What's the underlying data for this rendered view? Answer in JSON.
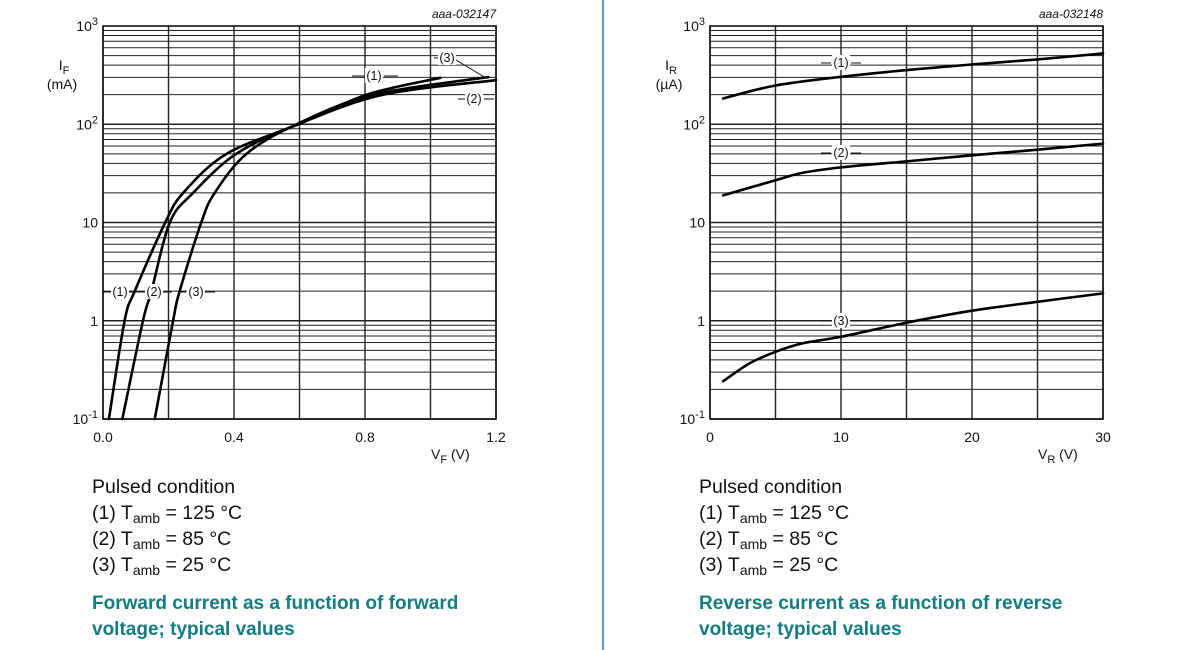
{
  "charts_text": [
    {
      "notes_title": "Pulsed condition",
      "legend": [
        {
          "prefix": "(1) T",
          "sub": "amb",
          "suffix": " = 125 °C"
        },
        {
          "prefix": "(2) T",
          "sub": "amb",
          "suffix": " = 85 °C"
        },
        {
          "prefix": "(3) T",
          "sub": "amb",
          "suffix": " = 25 °C"
        }
      ],
      "caption_line1": "Forward current as a function of forward",
      "caption_line2": "voltage; typical values"
    },
    {
      "notes_title": "Pulsed condition",
      "legend": [
        {
          "prefix": "(1) T",
          "sub": "amb",
          "suffix": " = 125 °C"
        },
        {
          "prefix": "(2) T",
          "sub": "amb",
          "suffix": " = 85 °C"
        },
        {
          "prefix": "(3) T",
          "sub": "amb",
          "suffix": " = 25 °C"
        }
      ],
      "caption_line1": "Reverse current as a function of reverse",
      "caption_line2": "voltage; typical values"
    }
  ],
  "colors": {
    "caption": "#137b82",
    "divider": "#5a9ea6",
    "curve": "#000000",
    "grid": "#222222"
  },
  "chart_data": [
    {
      "type": "line",
      "id_code": "aaa-032147",
      "xlabel": {
        "symbol": "V",
        "sub": "F",
        "unit": " (V)"
      },
      "ylabel": {
        "symbol": "I",
        "sub": "F",
        "unit": "(mA)"
      },
      "x_scale": "linear",
      "xlim": [
        0,
        1.2
      ],
      "x_ticks": [
        0,
        0.4,
        0.8,
        1.2
      ],
      "x_tick_labels": [
        "0.0",
        "0.4",
        "0.8",
        "1.2"
      ],
      "x_grid_step": 0.2,
      "y_scale": "log",
      "ylim": [
        0.1,
        1000
      ],
      "y_ticks": [
        0.1,
        1,
        10,
        100,
        1000
      ],
      "y_tick_labels": [
        {
          "base": "10",
          "exp": "-1"
        },
        {
          "base": "1",
          "exp": ""
        },
        {
          "base": "10",
          "exp": ""
        },
        {
          "base": "10",
          "exp": "2"
        },
        {
          "base": "10",
          "exp": "3"
        }
      ],
      "grid": true,
      "series": [
        {
          "name": "(1)",
          "x": [
            0.018,
            0.066,
            0.097,
            0.19,
            0.245,
            0.377,
            0.596,
            0.805,
            1.03
          ],
          "y": [
            0.1,
            1,
            2,
            10,
            20,
            50,
            100,
            200,
            297
          ]
        },
        {
          "name": "(2)",
          "x": [
            0.059,
            0.122,
            0.148,
            0.204,
            0.275,
            0.407,
            0.596,
            0.856,
            1.2
          ],
          "y": [
            0.1,
            1,
            2,
            10,
            20,
            50,
            100,
            200,
            281
          ]
        },
        {
          "name": "(3)",
          "x": [
            0.158,
            0.214,
            0.234,
            0.3,
            0.341,
            0.438,
            0.591,
            0.825,
            1.177
          ],
          "y": [
            0.1,
            1,
            2,
            10,
            20,
            50,
            100,
            200,
            302
          ]
        }
      ]
    },
    {
      "type": "line",
      "id_code": "aaa-032148",
      "xlabel": {
        "symbol": "V",
        "sub": "R",
        "unit": " (V)"
      },
      "ylabel": {
        "symbol": "I",
        "sub": "R",
        "unit": "(µA)"
      },
      "x_scale": "linear",
      "xlim": [
        0,
        30
      ],
      "x_ticks": [
        0,
        10,
        20,
        30
      ],
      "x_tick_labels": [
        "0",
        "10",
        "20",
        "30"
      ],
      "x_grid_step": 5,
      "y_scale": "log",
      "ylim": [
        0.1,
        1000
      ],
      "y_ticks": [
        0.1,
        1,
        10,
        100,
        1000
      ],
      "y_tick_labels": [
        {
          "base": "10",
          "exp": "-1"
        },
        {
          "base": "1",
          "exp": ""
        },
        {
          "base": "10",
          "exp": ""
        },
        {
          "base": "10",
          "exp": "2"
        },
        {
          "base": "10",
          "exp": "3"
        }
      ],
      "grid": true,
      "series": [
        {
          "name": "(1)",
          "x": [
            1,
            5,
            10,
            15,
            20,
            25,
            30
          ],
          "y": [
            183,
            248,
            304,
            356,
            406,
            457,
            526
          ]
        },
        {
          "name": "(2)",
          "x": [
            1,
            5,
            7,
            10,
            15,
            20,
            25,
            30
          ],
          "y": [
            18.9,
            26.9,
            31.9,
            36.4,
            41.9,
            48.3,
            55.1,
            63.5
          ]
        },
        {
          "name": "(3)",
          "x": [
            1,
            3,
            5,
            7,
            10,
            15,
            20,
            25,
            30
          ],
          "y": [
            0.242,
            0.367,
            0.483,
            0.587,
            0.687,
            0.955,
            1.265,
            1.56,
            1.9
          ]
        }
      ]
    }
  ]
}
